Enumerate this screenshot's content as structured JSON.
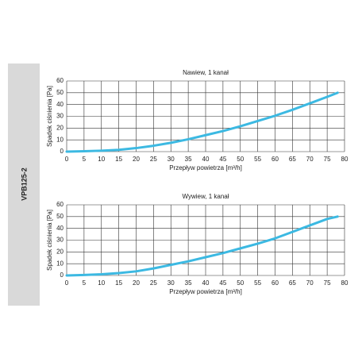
{
  "side_label": "VPB125-2",
  "chart_data": [
    {
      "type": "line",
      "title": "Nawiew, 1 kanał",
      "xlabel": "Przepływ powietrza [m³/h]",
      "ylabel": "Spadek ciśnienia [Pa]",
      "x": [
        0,
        5,
        10,
        15,
        20,
        25,
        30,
        35,
        40,
        45,
        50,
        55,
        60,
        65,
        70,
        75,
        78
      ],
      "values": [
        0,
        0.3,
        0.8,
        1.5,
        3,
        5,
        7.5,
        10.5,
        14,
        17.5,
        21.5,
        26,
        30.5,
        35.5,
        41,
        46.5,
        50
      ],
      "color": "#3cb9e2",
      "xlim": [
        0,
        80
      ],
      "ylim": [
        0,
        60
      ],
      "xticks": [
        0,
        5,
        10,
        15,
        20,
        25,
        30,
        35,
        40,
        45,
        50,
        55,
        60,
        65,
        70,
        75,
        80
      ],
      "yticks": [
        0,
        10,
        20,
        30,
        40,
        50,
        60
      ],
      "grid": true
    },
    {
      "type": "line",
      "title": "Wywiew, 1 kanał",
      "xlabel": "Przepływ powietrza [m³/h]",
      "ylabel": "Spadek ciśnienia [Pa]",
      "x": [
        0,
        5,
        10,
        15,
        20,
        25,
        30,
        35,
        40,
        45,
        50,
        55,
        60,
        65,
        70,
        75,
        78
      ],
      "values": [
        0,
        0.4,
        1,
        2,
        3.5,
        6,
        9,
        12,
        15.5,
        19,
        23,
        27,
        31.5,
        37,
        42.5,
        48,
        50
      ],
      "color": "#3cb9e2",
      "xlim": [
        0,
        80
      ],
      "ylim": [
        0,
        60
      ],
      "xticks": [
        0,
        5,
        10,
        15,
        20,
        25,
        30,
        35,
        40,
        45,
        50,
        55,
        60,
        65,
        70,
        75,
        80
      ],
      "yticks": [
        0,
        10,
        20,
        30,
        40,
        50,
        60
      ],
      "grid": true
    }
  ]
}
